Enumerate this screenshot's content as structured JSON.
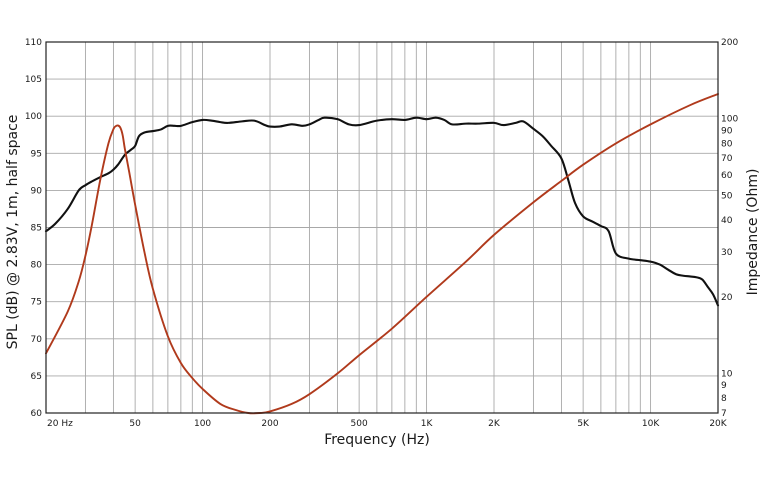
{
  "chart_data": {
    "type": "line",
    "xlabel": "Frequency (Hz)",
    "ylabel": "SPL (dB) @ 2.83V, 1m, half space",
    "y2label": "Impedance (Ohm)",
    "x_scale": "log",
    "xlim": [
      20,
      20000
    ],
    "ylim": [
      60,
      110
    ],
    "y2lim": [
      7,
      200
    ],
    "y2_scale": "log",
    "grid": true,
    "x_tick_labels": [
      {
        "v": 20,
        "t": "20 Hz"
      },
      {
        "v": 50,
        "t": "50"
      },
      {
        "v": 100,
        "t": "100"
      },
      {
        "v": 200,
        "t": "200"
      },
      {
        "v": 500,
        "t": "500"
      },
      {
        "v": 1000,
        "t": "1K"
      },
      {
        "v": 2000,
        "t": "2K"
      },
      {
        "v": 5000,
        "t": "5K"
      },
      {
        "v": 10000,
        "t": "10K"
      },
      {
        "v": 20000,
        "t": "20K"
      }
    ],
    "y_ticks": [
      60,
      65,
      70,
      75,
      80,
      85,
      90,
      95,
      100,
      105,
      110
    ],
    "y2_ticks": [
      7,
      8,
      9,
      10,
      20,
      30,
      40,
      50,
      60,
      70,
      80,
      90,
      100,
      200
    ],
    "series": [
      {
        "axis": "left",
        "color": "#111111",
        "x": [
          20,
          22,
          25,
          28,
          30,
          32,
          35,
          38,
          40,
          42,
          45,
          48,
          50,
          52,
          55,
          60,
          65,
          70,
          75,
          80,
          90,
          100,
          110,
          120,
          130,
          150,
          170,
          190,
          200,
          220,
          250,
          280,
          300,
          330,
          350,
          400,
          450,
          500,
          600,
          700,
          800,
          900,
          1000,
          1100,
          1200,
          1300,
          1500,
          1700,
          2000,
          2200,
          2500,
          2700,
          3000,
          3300,
          3600,
          4000,
          4300,
          4600,
          5000,
          5500,
          6000,
          6500,
          7000,
          8000,
          9000,
          10000,
          11000,
          12000,
          13000,
          14000,
          15000,
          16000,
          17000,
          18000,
          19000,
          20000
        ],
        "y": [
          84.5,
          85.5,
          87.5,
          90.0,
          90.7,
          91.2,
          91.8,
          92.3,
          92.8,
          93.5,
          94.8,
          95.5,
          96.0,
          97.3,
          97.8,
          98.0,
          98.2,
          98.7,
          98.7,
          98.7,
          99.2,
          99.5,
          99.4,
          99.2,
          99.1,
          99.3,
          99.4,
          98.8,
          98.6,
          98.6,
          98.9,
          98.7,
          98.9,
          99.5,
          99.8,
          99.6,
          98.9,
          98.8,
          99.4,
          99.6,
          99.5,
          99.8,
          99.6,
          99.8,
          99.5,
          98.9,
          99.0,
          99.0,
          99.1,
          98.8,
          99.1,
          99.3,
          98.3,
          97.3,
          96.0,
          94.3,
          91.3,
          88.3,
          86.5,
          85.8,
          85.2,
          84.5,
          81.5,
          80.8,
          80.6,
          80.4,
          80.0,
          79.3,
          78.7,
          78.5,
          78.4,
          78.3,
          78.0,
          77.0,
          76.0,
          74.5
        ]
      },
      {
        "axis": "right",
        "color": "#b03a1c",
        "x": [
          20,
          25,
          28,
          30,
          32,
          35,
          38,
          40,
          41,
          42,
          43,
          44,
          45,
          47,
          50,
          55,
          60,
          70,
          80,
          90,
          100,
          120,
          140,
          160,
          180,
          200,
          250,
          300,
          400,
          500,
          700,
          1000,
          1500,
          2000,
          3000,
          4000,
          5000,
          7000,
          10000,
          15000,
          20000
        ],
        "y": [
          12.0,
          17.5,
          23.0,
          29.0,
          38.0,
          58.0,
          80.0,
          91.0,
          93.5,
          94.0,
          92.0,
          86.0,
          76.0,
          62.0,
          46.0,
          30.0,
          21.5,
          14.0,
          11.0,
          9.6,
          8.7,
          7.6,
          7.2,
          7.0,
          7.0,
          7.1,
          7.6,
          8.3,
          10.0,
          11.8,
          15.0,
          20.0,
          27.5,
          35.0,
          47.0,
          57.0,
          66.0,
          80.0,
          95.0,
          113.0,
          125.0
        ]
      }
    ]
  }
}
